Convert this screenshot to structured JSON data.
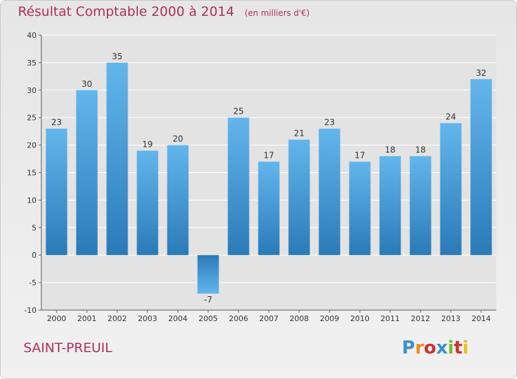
{
  "header": {
    "title": "Résultat Comptable 2000 à 2014",
    "unit": "(en milliers d'€)"
  },
  "footer": {
    "commune": "SAINT-PREUIL",
    "logo_text": "Proxiti",
    "logo_colors": [
      "#3a8fd0",
      "#e88a1a",
      "#d03030",
      "#3a8fd0",
      "#7ab82a",
      "#d03030",
      "#e8c21a"
    ]
  },
  "colors": {
    "bar_top": "#63b6ec",
    "bar_bottom": "#2a7ab8",
    "grid": "#ffffff",
    "title": "#b0305a"
  },
  "chart_data": {
    "type": "bar",
    "title": "Résultat Comptable 2000 à 2014",
    "subtitle": "(en milliers d'€)",
    "xlabel": "",
    "ylabel": "",
    "categories": [
      "2000",
      "2001",
      "2002",
      "2003",
      "2004",
      "2005",
      "2006",
      "2007",
      "2008",
      "2009",
      "2010",
      "2011",
      "2012",
      "2013",
      "2014"
    ],
    "values": [
      23,
      30,
      35,
      19,
      20,
      -7,
      25,
      17,
      21,
      23,
      17,
      18,
      18,
      24,
      32
    ],
    "ylim": [
      -10,
      40
    ],
    "yticks": [
      -10,
      -5,
      0,
      5,
      10,
      15,
      20,
      25,
      30,
      35,
      40
    ],
    "grid": true,
    "legend": "none"
  }
}
